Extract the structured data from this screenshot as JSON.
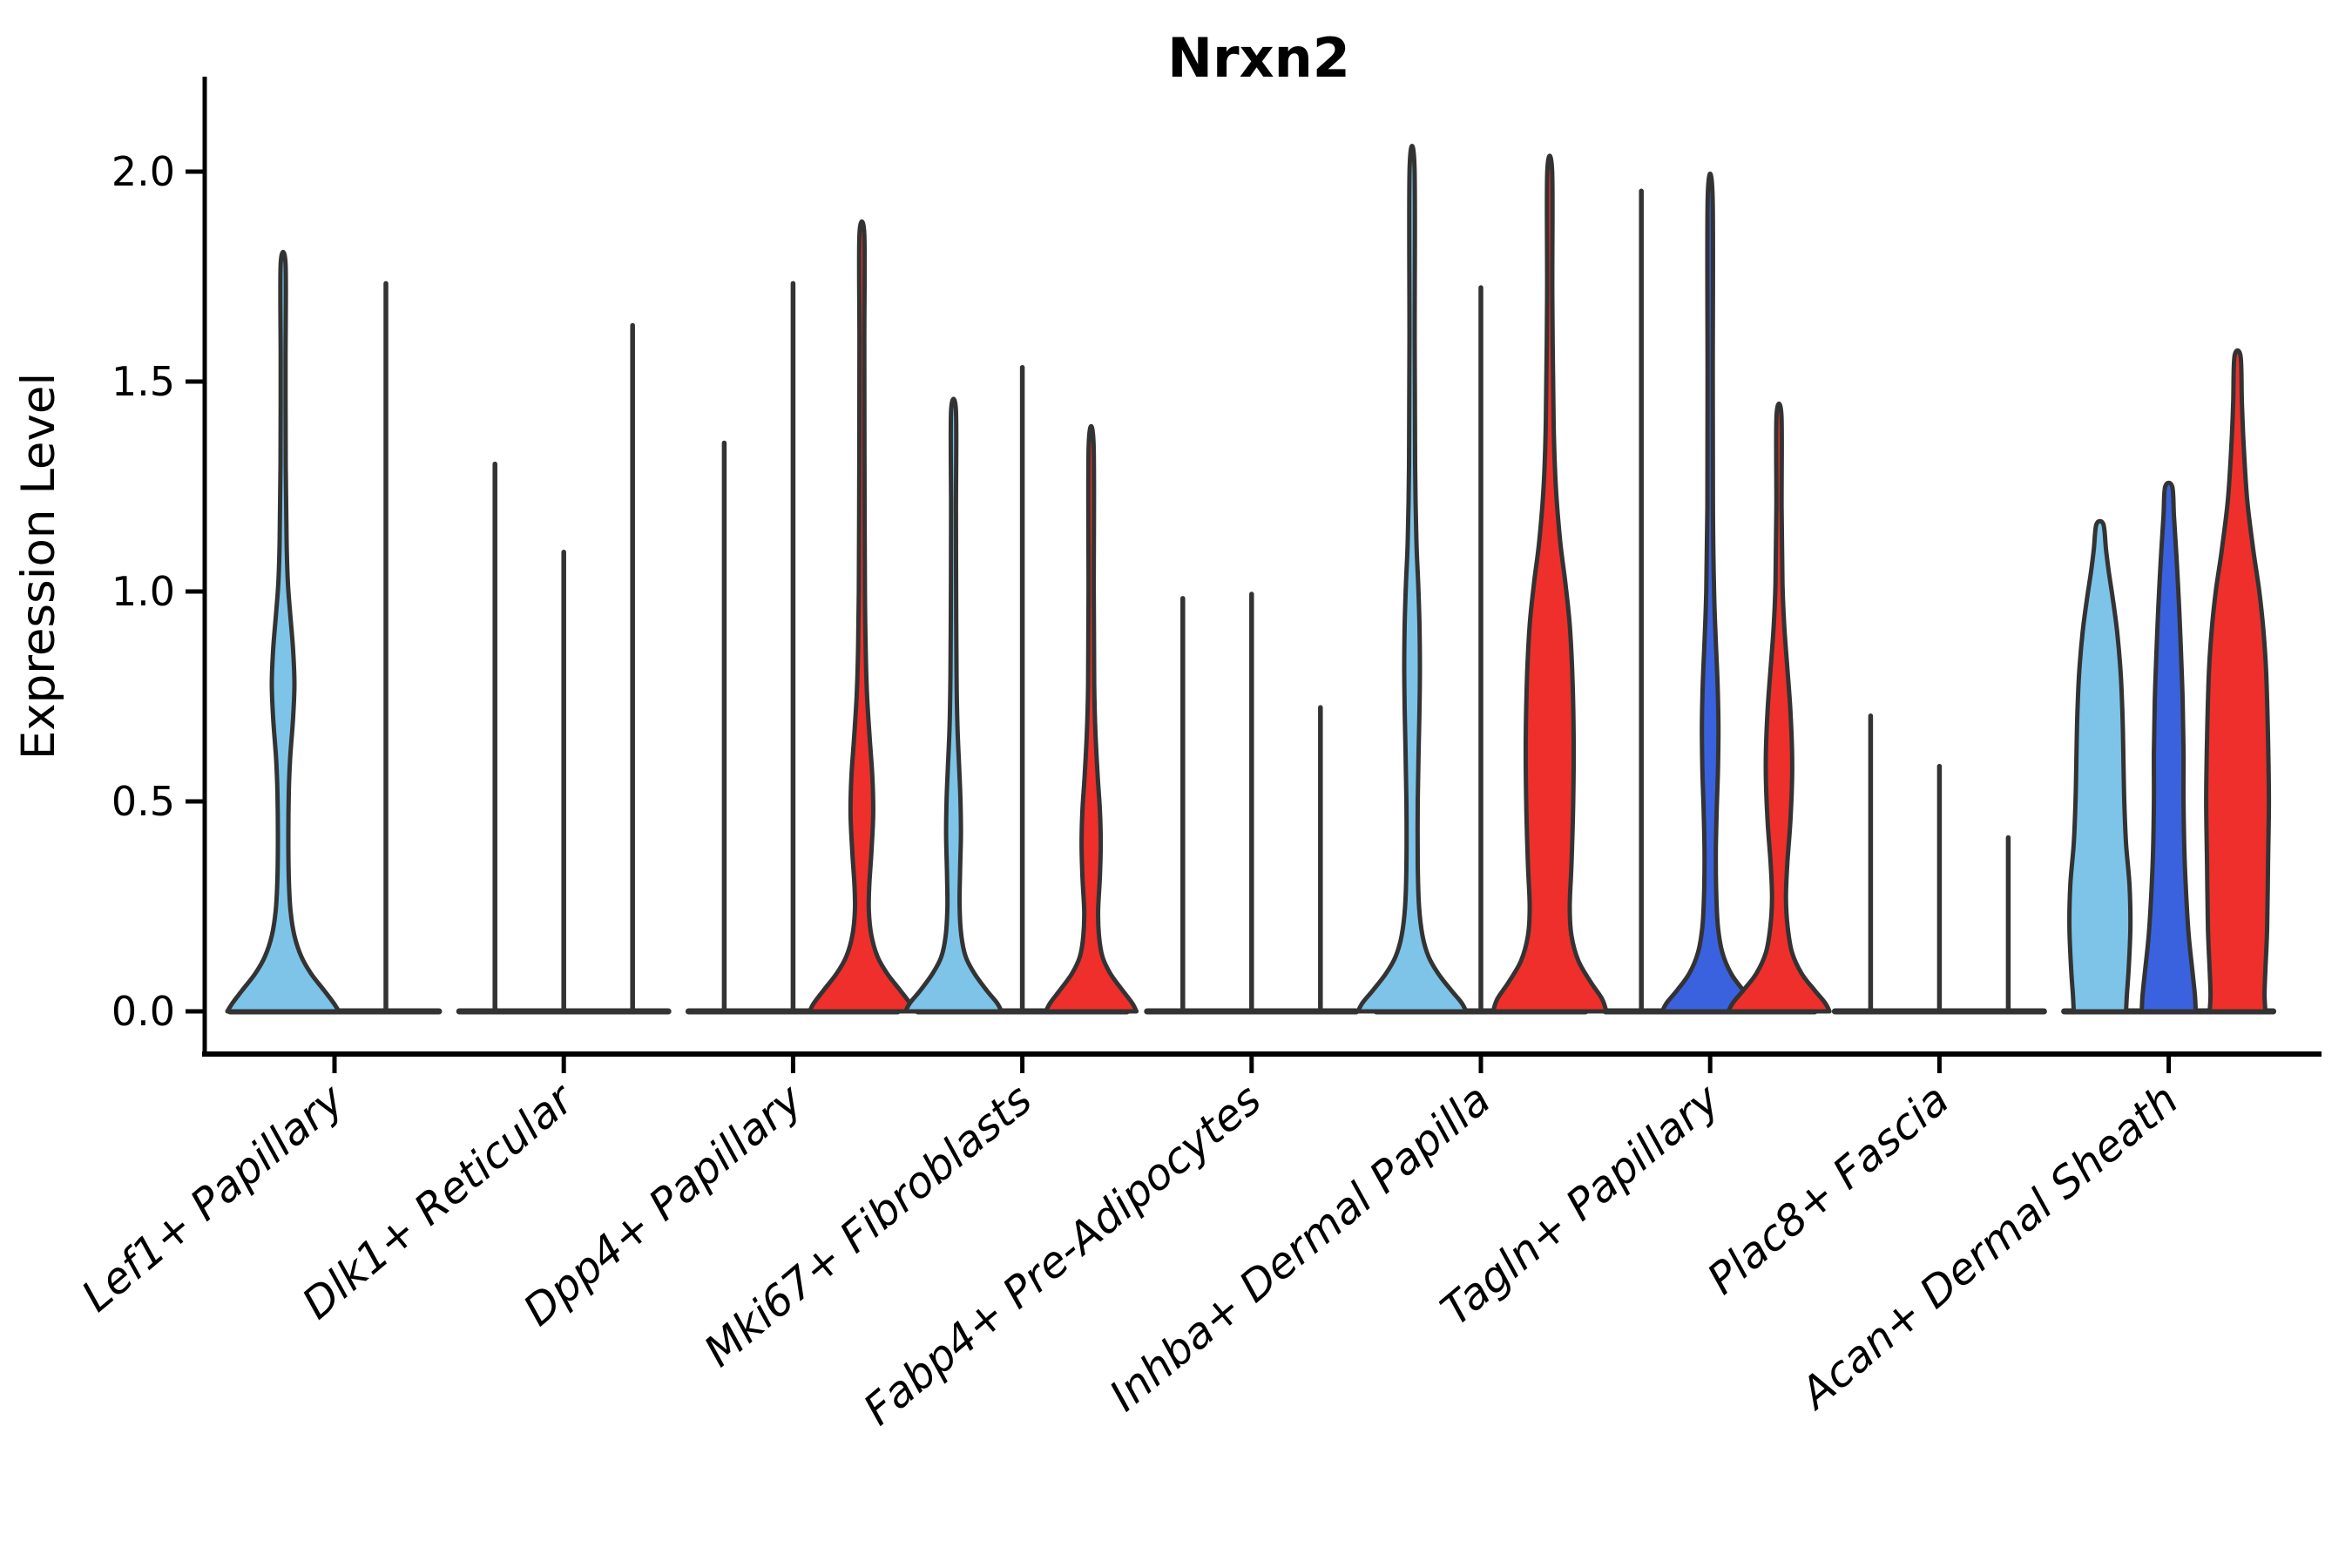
{
  "chart_data": {
    "type": "violin",
    "title": "Nrxn2",
    "xlabel": "",
    "ylabel": "Expression Level",
    "ylim": [
      0,
      2.05
    ],
    "yticks": [
      "0.0",
      "0.5",
      "1.0",
      "1.5",
      "2.0"
    ],
    "ytick_values": [
      0.0,
      0.5,
      1.0,
      1.5,
      2.0
    ],
    "grid": "off",
    "legend": "none",
    "categories": [
      "Lef1+ Papillary",
      "Dlk1+ Reticular",
      "Dpp4+ Papillary",
      "Mki67+ Fibroblasts",
      "Fabp4+ Pre-Adipocytes",
      "Inhba+ Dermal Papilla",
      "Tagln+ Papillary",
      "Plac8+ Fascia",
      "Acan+ Dermal Sheath"
    ],
    "colors": {
      "light_blue": "#7DC4E8",
      "dark_blue": "#3A62DE",
      "red": "#EF2F2B",
      "outline": "#333333",
      "axis": "#000000"
    },
    "groups": [
      {
        "category": "Lef1+ Papillary",
        "violins": [
          {
            "color": "light_blue",
            "max": 1.78,
            "profile": [
              [
                0,
                64
              ],
              [
                0.02,
                58
              ],
              [
                0.05,
                47
              ],
              [
                0.09,
                32
              ],
              [
                0.13,
                21
              ],
              [
                0.18,
                13
              ],
              [
                0.24,
                8.5
              ],
              [
                0.32,
                6.5
              ],
              [
                0.42,
                6
              ],
              [
                0.52,
                6.5
              ],
              [
                0.6,
                8
              ],
              [
                0.7,
                11.5
              ],
              [
                0.78,
                13
              ],
              [
                0.86,
                11.5
              ],
              [
                0.95,
                8
              ],
              [
                1.02,
                5.5
              ],
              [
                1.12,
                4
              ],
              [
                1.3,
                3
              ],
              [
                1.55,
                2.8
              ],
              [
                1.78,
                2.8
              ]
            ]
          },
          {
            "color": "dark_blue",
            "max": 1.74,
            "shape": "line"
          }
        ]
      },
      {
        "category": "Dlk1+ Reticular",
        "violins": [
          {
            "color": "light_blue",
            "max": 1.31,
            "shape": "line"
          },
          {
            "color": "dark_blue",
            "max": 1.1,
            "shape": "line"
          },
          {
            "color": "red",
            "max": 1.64,
            "shape": "line"
          }
        ]
      },
      {
        "category": "Dpp4+ Papillary",
        "violins": [
          {
            "color": "light_blue",
            "max": 1.36,
            "shape": "line"
          },
          {
            "color": "dark_blue",
            "max": 1.74,
            "shape": "line"
          },
          {
            "color": "red",
            "max": 1.85,
            "profile": [
              [
                0,
                60
              ],
              [
                0.02,
                55
              ],
              [
                0.05,
                44
              ],
              [
                0.09,
                29
              ],
              [
                0.13,
                18
              ],
              [
                0.18,
                11
              ],
              [
                0.24,
                8
              ],
              [
                0.3,
                8.5
              ],
              [
                0.38,
                11
              ],
              [
                0.47,
                13
              ],
              [
                0.56,
                12
              ],
              [
                0.65,
                9
              ],
              [
                0.75,
                6
              ],
              [
                0.85,
                4.5
              ],
              [
                1.0,
                3.5
              ],
              [
                1.3,
                3
              ],
              [
                1.6,
                2.8
              ],
              [
                1.85,
                2.8
              ]
            ]
          }
        ]
      },
      {
        "category": "Mki67+ Fibroblasts",
        "violins": [
          {
            "color": "light_blue",
            "max": 1.43,
            "profile": [
              [
                0,
                55
              ],
              [
                0.02,
                50
              ],
              [
                0.05,
                38
              ],
              [
                0.09,
                24
              ],
              [
                0.13,
                14
              ],
              [
                0.18,
                9
              ],
              [
                0.25,
                7
              ],
              [
                0.33,
                7.5
              ],
              [
                0.42,
                8.5
              ],
              [
                0.5,
                8
              ],
              [
                0.58,
                6.5
              ],
              [
                0.68,
                4.5
              ],
              [
                0.8,
                3.5
              ],
              [
                1.0,
                3
              ],
              [
                1.2,
                2.8
              ],
              [
                1.43,
                2.8
              ]
            ]
          },
          {
            "color": "dark_blue",
            "max": 1.54,
            "shape": "line"
          },
          {
            "color": "red",
            "max": 1.35,
            "profile": [
              [
                0,
                52
              ],
              [
                0.02,
                47
              ],
              [
                0.05,
                36
              ],
              [
                0.09,
                22
              ],
              [
                0.13,
                13
              ],
              [
                0.18,
                9
              ],
              [
                0.24,
                8
              ],
              [
                0.32,
                10
              ],
              [
                0.4,
                11
              ],
              [
                0.48,
                10
              ],
              [
                0.56,
                7.5
              ],
              [
                0.66,
                5
              ],
              [
                0.78,
                3.5
              ],
              [
                1.0,
                3
              ],
              [
                1.35,
                2.8
              ]
            ]
          }
        ]
      },
      {
        "category": "Fabp4+ Pre-Adipocytes",
        "violins": [
          {
            "color": "light_blue",
            "max": 0.99,
            "shape": "line"
          },
          {
            "color": "dark_blue",
            "max": 1.0,
            "shape": "line"
          },
          {
            "color": "red",
            "max": 0.73,
            "shape": "line"
          }
        ]
      },
      {
        "category": "Inhba+ Dermal Papilla",
        "violins": [
          {
            "color": "light_blue",
            "max": 2.01,
            "profile": [
              [
                0,
                62
              ],
              [
                0.02,
                57
              ],
              [
                0.05,
                45
              ],
              [
                0.09,
                30
              ],
              [
                0.13,
                19
              ],
              [
                0.18,
                12
              ],
              [
                0.25,
                8
              ],
              [
                0.35,
                6.5
              ],
              [
                0.5,
                6.5
              ],
              [
                0.62,
                7.5
              ],
              [
                0.72,
                8.5
              ],
              [
                0.82,
                9
              ],
              [
                0.92,
                8.5
              ],
              [
                1.02,
                7
              ],
              [
                1.12,
                5
              ],
              [
                1.3,
                3.5
              ],
              [
                1.6,
                3
              ],
              [
                2.01,
                2.8
              ]
            ]
          },
          {
            "color": "dark_blue",
            "max": 1.73,
            "shape": "line"
          },
          {
            "color": "red",
            "max": 2.0,
            "profile": [
              [
                0,
                65
              ],
              [
                0.03,
                60
              ],
              [
                0.07,
                47
              ],
              [
                0.12,
                33
              ],
              [
                0.18,
                25
              ],
              [
                0.25,
                23
              ],
              [
                0.35,
                25
              ],
              [
                0.5,
                27
              ],
              [
                0.65,
                27.5
              ],
              [
                0.8,
                26
              ],
              [
                0.92,
                23
              ],
              [
                1.02,
                18
              ],
              [
                1.12,
                12
              ],
              [
                1.25,
                7
              ],
              [
                1.4,
                4.5
              ],
              [
                1.7,
                3
              ],
              [
                2.0,
                2.8
              ]
            ]
          }
        ]
      },
      {
        "category": "Tagln+ Papillary",
        "violins": [
          {
            "color": "light_blue",
            "max": 1.96,
            "shape": "line"
          },
          {
            "color": "dark_blue",
            "max": 1.94,
            "profile": [
              [
                0,
                55
              ],
              [
                0.02,
                50
              ],
              [
                0.05,
                38
              ],
              [
                0.09,
                24
              ],
              [
                0.14,
                14
              ],
              [
                0.2,
                9
              ],
              [
                0.28,
                7
              ],
              [
                0.38,
                6.5
              ],
              [
                0.48,
                7.5
              ],
              [
                0.58,
                9
              ],
              [
                0.68,
                9.5
              ],
              [
                0.78,
                8.5
              ],
              [
                0.88,
                6.5
              ],
              [
                1.0,
                4.5
              ],
              [
                1.2,
                3.2
              ],
              [
                1.5,
                3
              ],
              [
                1.94,
                2.8
              ]
            ]
          },
          {
            "color": "red",
            "max": 1.42,
            "profile": [
              [
                0,
                58
              ],
              [
                0.02,
                53
              ],
              [
                0.05,
                41
              ],
              [
                0.09,
                26
              ],
              [
                0.14,
                15
              ],
              [
                0.2,
                10
              ],
              [
                0.27,
                8
              ],
              [
                0.35,
                9.5
              ],
              [
                0.45,
                13
              ],
              [
                0.55,
                15
              ],
              [
                0.62,
                15
              ],
              [
                0.72,
                13
              ],
              [
                0.82,
                9.5
              ],
              [
                0.92,
                6
              ],
              [
                1.02,
                4
              ],
              [
                1.2,
                3
              ],
              [
                1.42,
                2.8
              ]
            ]
          }
        ]
      },
      {
        "category": "Plac8+ Fascia",
        "violins": [
          {
            "color": "light_blue",
            "max": 0.71,
            "shape": "line"
          },
          {
            "color": "dark_blue",
            "max": 0.59,
            "shape": "line"
          },
          {
            "color": "red",
            "max": 0.42,
            "shape": "line"
          }
        ]
      },
      {
        "category": "Acan+ Dermal Sheath",
        "violins": [
          {
            "color": "light_blue",
            "max": 1.16,
            "profile": [
              [
                0,
                30
              ],
              [
                0.04,
                31
              ],
              [
                0.1,
                33
              ],
              [
                0.2,
                35
              ],
              [
                0.3,
                34
              ],
              [
                0.4,
                30
              ],
              [
                0.5,
                28
              ],
              [
                0.6,
                27
              ],
              [
                0.7,
                26
              ],
              [
                0.8,
                24
              ],
              [
                0.9,
                20
              ],
              [
                0.98,
                15
              ],
              [
                1.05,
                10
              ],
              [
                1.1,
                7
              ],
              [
                1.16,
                4
              ]
            ]
          },
          {
            "color": "dark_blue",
            "max": 1.25,
            "profile": [
              [
                0,
                31
              ],
              [
                0.04,
                30
              ],
              [
                0.1,
                27
              ],
              [
                0.18,
                23
              ],
              [
                0.28,
                20
              ],
              [
                0.38,
                18
              ],
              [
                0.5,
                17
              ],
              [
                0.62,
                17
              ],
              [
                0.74,
                16
              ],
              [
                0.86,
                14
              ],
              [
                0.96,
                12
              ],
              [
                1.08,
                9
              ],
              [
                1.18,
                6
              ],
              [
                1.25,
                4
              ]
            ]
          },
          {
            "color": "red",
            "max": 1.56,
            "profile": [
              [
                0,
                32
              ],
              [
                0.04,
                31
              ],
              [
                0.1,
                32
              ],
              [
                0.2,
                34
              ],
              [
                0.35,
                35
              ],
              [
                0.5,
                36
              ],
              [
                0.65,
                35
              ],
              [
                0.8,
                33
              ],
              [
                0.9,
                30
              ],
              [
                1.0,
                25
              ],
              [
                1.1,
                18
              ],
              [
                1.22,
                11
              ],
              [
                1.35,
                7
              ],
              [
                1.45,
                5
              ],
              [
                1.56,
                3.5
              ]
            ]
          }
        ]
      }
    ]
  }
}
